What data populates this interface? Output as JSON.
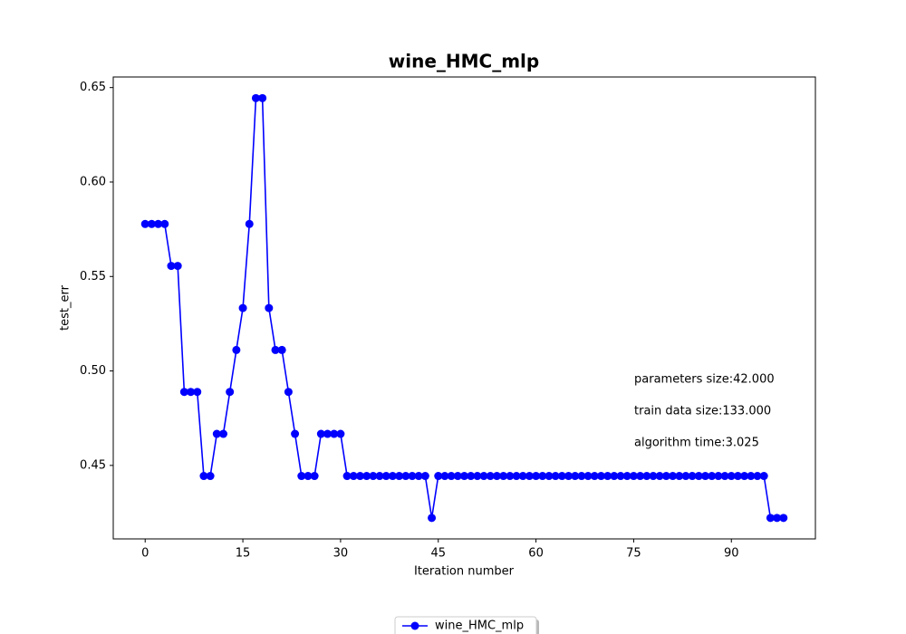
{
  "chart_data": {
    "type": "line",
    "title": "wine_HMC_mlp",
    "x_label": "Iteration number",
    "y_label": "test_err",
    "annotations": [
      "parameters size:42.000",
      "train data size:133.000",
      "algorithm time:3.025"
    ],
    "x": [
      0,
      1,
      2,
      3,
      4,
      5,
      6,
      7,
      8,
      9,
      10,
      11,
      12,
      13,
      14,
      15,
      16,
      17,
      18,
      19,
      20,
      21,
      22,
      23,
      24,
      25,
      26,
      27,
      28,
      29,
      30,
      31,
      32,
      33,
      34,
      35,
      36,
      37,
      38,
      39,
      40,
      41,
      42,
      43,
      44,
      45,
      46,
      47,
      48,
      49,
      50,
      51,
      52,
      53,
      54,
      55,
      56,
      57,
      58,
      59,
      60,
      61,
      62,
      63,
      64,
      65,
      66,
      67,
      68,
      69,
      70,
      71,
      72,
      73,
      74,
      75,
      76,
      77,
      78,
      79,
      80,
      81,
      82,
      83,
      84,
      85,
      86,
      87,
      88,
      89,
      90,
      91,
      92,
      93,
      94,
      95,
      96,
      97,
      98
    ],
    "series": [
      {
        "name": "wine_HMC_mlp",
        "color": "#0000ff",
        "values": [
          0.5778,
          0.5778,
          0.5778,
          0.5778,
          0.5556,
          0.5556,
          0.4889,
          0.4889,
          0.4889,
          0.4444,
          0.4444,
          0.4667,
          0.4667,
          0.4889,
          0.5111,
          0.5333,
          0.5778,
          0.6444,
          0.6444,
          0.5333,
          0.5111,
          0.5111,
          0.4889,
          0.4667,
          0.4444,
          0.4444,
          0.4444,
          0.4667,
          0.4667,
          0.4667,
          0.4667,
          0.4444,
          0.4444,
          0.4444,
          0.4444,
          0.4444,
          0.4444,
          0.4444,
          0.4444,
          0.4444,
          0.4444,
          0.4444,
          0.4444,
          0.4444,
          0.4222,
          0.4444,
          0.4444,
          0.4444,
          0.4444,
          0.4444,
          0.4444,
          0.4444,
          0.4444,
          0.4444,
          0.4444,
          0.4444,
          0.4444,
          0.4444,
          0.4444,
          0.4444,
          0.4444,
          0.4444,
          0.4444,
          0.4444,
          0.4444,
          0.4444,
          0.4444,
          0.4444,
          0.4444,
          0.4444,
          0.4444,
          0.4444,
          0.4444,
          0.4444,
          0.4444,
          0.4444,
          0.4444,
          0.4444,
          0.4444,
          0.4444,
          0.4444,
          0.4444,
          0.4444,
          0.4444,
          0.4444,
          0.4444,
          0.4444,
          0.4444,
          0.4444,
          0.4444,
          0.4444,
          0.4444,
          0.4444,
          0.4444,
          0.4444,
          0.4444,
          0.4222,
          0.4222,
          0.4222
        ]
      }
    ],
    "xlim": [
      -4.9,
      102.9
    ],
    "xticks": [
      0,
      15,
      30,
      45,
      60,
      75,
      90
    ],
    "ylim": [
      0.4111,
      0.6556
    ],
    "yticks": [
      0.45,
      {
        "value": 0.5,
        "label": "0.50"
      },
      0.55,
      {
        "value": 0.6,
        "label": "0.60"
      },
      0.65
    ],
    "grid": false,
    "legend_position": "bottom"
  }
}
